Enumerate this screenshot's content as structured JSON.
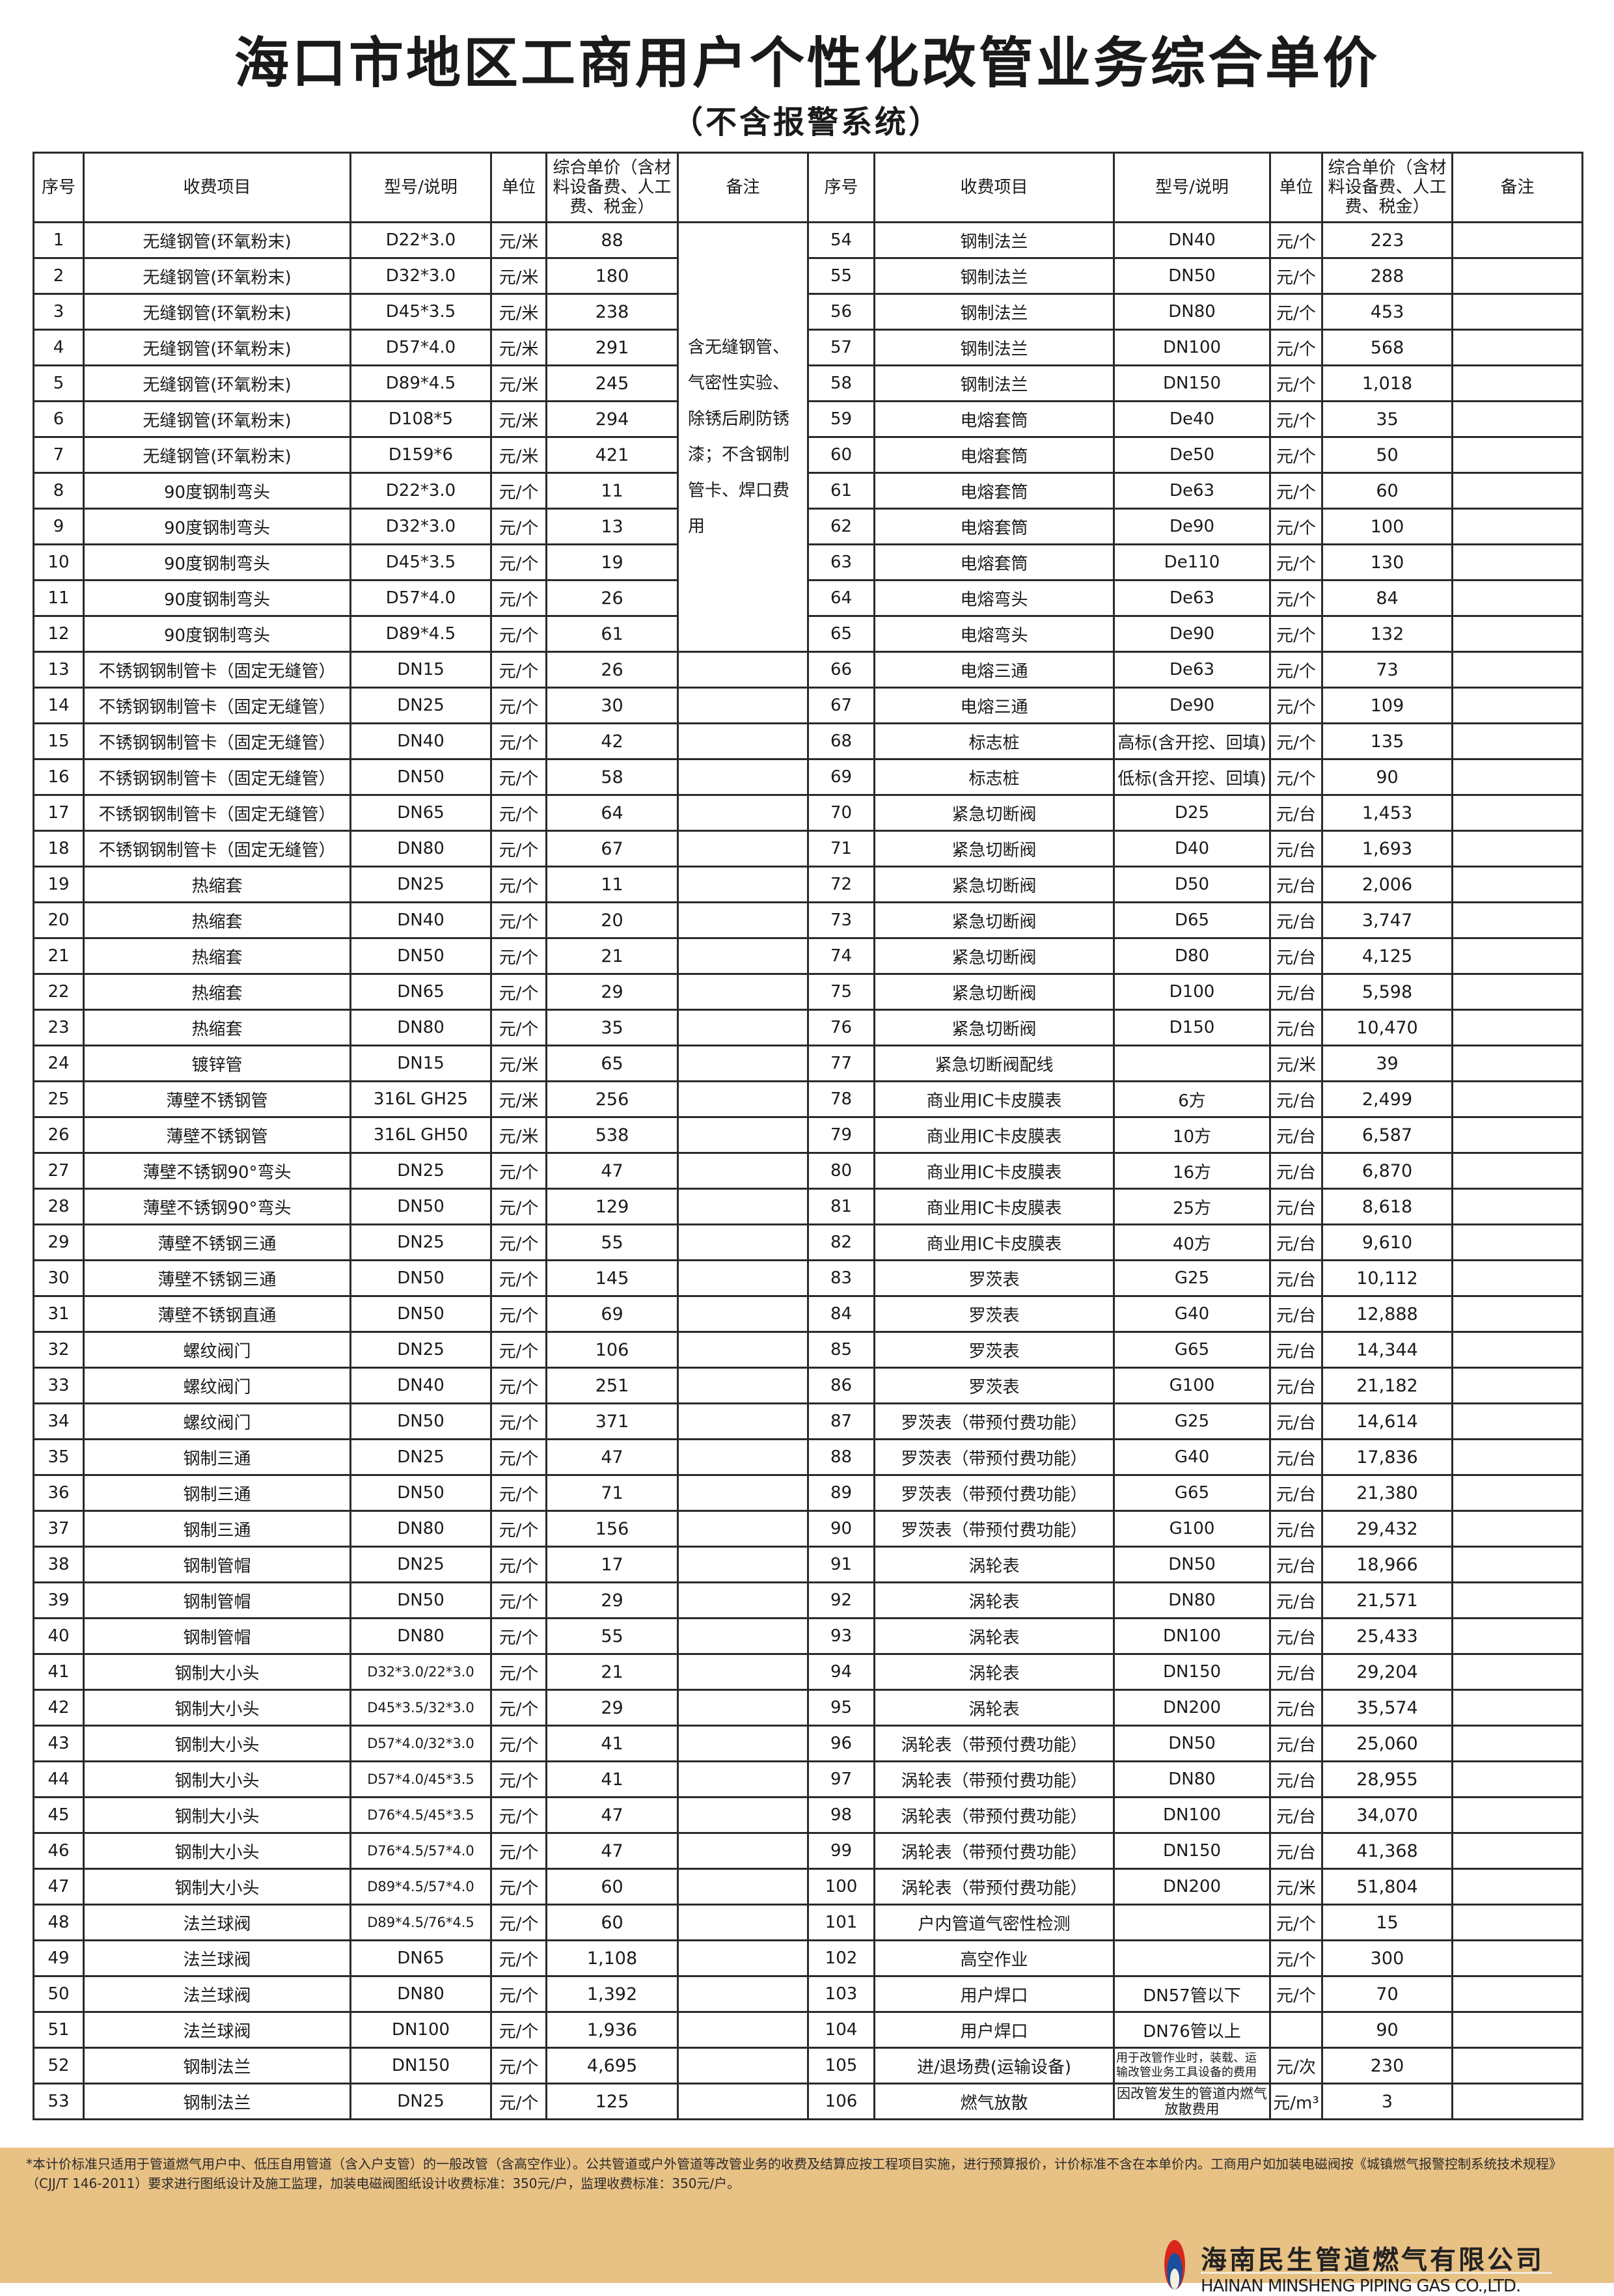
{
  "title": "海口市地区工商用户个性化改管业务综合单价",
  "subtitle": "（不含报警系统）",
  "headers": [
    "序号",
    "收费项目",
    "型号/说明",
    "单位",
    "综合单价（含材料设备费、人工费、税金）",
    "备注"
  ],
  "left_remark": "含无缝钢管、气密性实验、除锈后刷防锈漆；不含钢制管卡、焊口费用",
  "left_rows": [
    [
      "1",
      "无缝钢管(环氧粉末)",
      "D22*3.0",
      "元/米",
      "88"
    ],
    [
      "2",
      "无缝钢管(环氧粉末)",
      "D32*3.0",
      "元/米",
      "180"
    ],
    [
      "3",
      "无缝钢管(环氧粉末)",
      "D45*3.5",
      "元/米",
      "238"
    ],
    [
      "4",
      "无缝钢管(环氧粉末)",
      "D57*4.0",
      "元/米",
      "291"
    ],
    [
      "5",
      "无缝钢管(环氧粉末)",
      "D89*4.5",
      "元/米",
      "245"
    ],
    [
      "6",
      "无缝钢管(环氧粉末)",
      "D108*5",
      "元/米",
      "294"
    ],
    [
      "7",
      "无缝钢管(环氧粉末)",
      "D159*6",
      "元/米",
      "421"
    ],
    [
      "8",
      "90度钢制弯头",
      "D22*3.0",
      "元/个",
      "11"
    ],
    [
      "9",
      "90度钢制弯头",
      "D32*3.0",
      "元/个",
      "13"
    ],
    [
      "10",
      "90度钢制弯头",
      "D45*3.5",
      "元/个",
      "19"
    ],
    [
      "11",
      "90度钢制弯头",
      "D57*4.0",
      "元/个",
      "26"
    ],
    [
      "12",
      "90度钢制弯头",
      "D89*4.5",
      "元/个",
      "61"
    ],
    [
      "13",
      "不锈钢钢制管卡（固定无缝管）",
      "DN15",
      "元/个",
      "26"
    ],
    [
      "14",
      "不锈钢钢制管卡（固定无缝管）",
      "DN25",
      "元/个",
      "30"
    ],
    [
      "15",
      "不锈钢钢制管卡（固定无缝管）",
      "DN40",
      "元/个",
      "42"
    ],
    [
      "16",
      "不锈钢钢制管卡（固定无缝管）",
      "DN50",
      "元/个",
      "58"
    ],
    [
      "17",
      "不锈钢钢制管卡（固定无缝管）",
      "DN65",
      "元/个",
      "64"
    ],
    [
      "18",
      "不锈钢钢制管卡（固定无缝管）",
      "DN80",
      "元/个",
      "67"
    ],
    [
      "19",
      "热缩套",
      "DN25",
      "元/个",
      "11"
    ],
    [
      "20",
      "热缩套",
      "DN40",
      "元/个",
      "20"
    ],
    [
      "21",
      "热缩套",
      "DN50",
      "元/个",
      "21"
    ],
    [
      "22",
      "热缩套",
      "DN65",
      "元/个",
      "29"
    ],
    [
      "23",
      "热缩套",
      "DN80",
      "元/个",
      "35"
    ],
    [
      "24",
      "镀锌管",
      "DN15",
      "元/米",
      "65"
    ],
    [
      "25",
      "薄壁不锈钢管",
      "316L GH25",
      "元/米",
      "256"
    ],
    [
      "26",
      "薄壁不锈钢管",
      "316L GH50",
      "元/米",
      "538"
    ],
    [
      "27",
      "薄壁不锈钢90°弯头",
      "DN25",
      "元/个",
      "47"
    ],
    [
      "28",
      "薄壁不锈钢90°弯头",
      "DN50",
      "元/个",
      "129"
    ],
    [
      "29",
      "薄壁不锈钢三通",
      "DN25",
      "元/个",
      "55"
    ],
    [
      "30",
      "薄壁不锈钢三通",
      "DN50",
      "元/个",
      "145"
    ],
    [
      "31",
      "薄壁不锈钢直通",
      "DN50",
      "元/个",
      "69"
    ],
    [
      "32",
      "螺纹阀门",
      "DN25",
      "元/个",
      "106"
    ],
    [
      "33",
      "螺纹阀门",
      "DN40",
      "元/个",
      "251"
    ],
    [
      "34",
      "螺纹阀门",
      "DN50",
      "元/个",
      "371"
    ],
    [
      "35",
      "钢制三通",
      "DN25",
      "元/个",
      "47"
    ],
    [
      "36",
      "钢制三通",
      "DN50",
      "元/个",
      "71"
    ],
    [
      "37",
      "钢制三通",
      "DN80",
      "元/个",
      "156"
    ],
    [
      "38",
      "钢制管帽",
      "DN25",
      "元/个",
      "17"
    ],
    [
      "39",
      "钢制管帽",
      "DN50",
      "元/个",
      "29"
    ],
    [
      "40",
      "钢制管帽",
      "DN80",
      "元/个",
      "55"
    ],
    [
      "41",
      "钢制大小头",
      "D32*3.0/22*3.0",
      "元/个",
      "21"
    ],
    [
      "42",
      "钢制大小头",
      "D45*3.5/32*3.0",
      "元/个",
      "29"
    ],
    [
      "43",
      "钢制大小头",
      "D57*4.0/32*3.0",
      "元/个",
      "41"
    ],
    [
      "44",
      "钢制大小头",
      "D57*4.0/45*3.5",
      "元/个",
      "41"
    ],
    [
      "45",
      "钢制大小头",
      "D76*4.5/45*3.5",
      "元/个",
      "47"
    ],
    [
      "46",
      "钢制大小头",
      "D76*4.5/57*4.0",
      "元/个",
      "47"
    ],
    [
      "47",
      "钢制大小头",
      "D89*4.5/57*4.0",
      "元/个",
      "60"
    ],
    [
      "48",
      "法兰球阀",
      "D89*4.5/76*4.5",
      "元/个",
      "60"
    ],
    [
      "49",
      "法兰球阀",
      "DN65",
      "元/个",
      "1,108"
    ],
    [
      "50",
      "法兰球阀",
      "DN80",
      "元/个",
      "1,392"
    ],
    [
      "51",
      "法兰球阀",
      "DN100",
      "元/个",
      "1,936"
    ],
    [
      "52",
      "钢制法兰",
      "DN150",
      "元/个",
      "4,695"
    ],
    [
      "53",
      "钢制法兰",
      "DN25",
      "元/个",
      "125"
    ]
  ],
  "right_rows": [
    [
      "54",
      "钢制法兰",
      "DN40",
      "元/个",
      "223"
    ],
    [
      "55",
      "钢制法兰",
      "DN50",
      "元/个",
      "288"
    ],
    [
      "56",
      "钢制法兰",
      "DN80",
      "元/个",
      "453"
    ],
    [
      "57",
      "钢制法兰",
      "DN100",
      "元/个",
      "568"
    ],
    [
      "58",
      "钢制法兰",
      "DN150",
      "元/个",
      "1,018"
    ],
    [
      "59",
      "电熔套筒",
      "De40",
      "元/个",
      "35"
    ],
    [
      "60",
      "电熔套筒",
      "De50",
      "元/个",
      "50"
    ],
    [
      "61",
      "电熔套筒",
      "De63",
      "元/个",
      "60"
    ],
    [
      "62",
      "电熔套筒",
      "De90",
      "元/个",
      "100"
    ],
    [
      "63",
      "电熔套筒",
      "De110",
      "元/个",
      "130"
    ],
    [
      "64",
      "电熔弯头",
      "De63",
      "元/个",
      "84"
    ],
    [
      "65",
      "电熔弯头",
      "De90",
      "元/个",
      "132"
    ],
    [
      "66",
      "电熔三通",
      "De63",
      "元/个",
      "73"
    ],
    [
      "67",
      "电熔三通",
      "De90",
      "元/个",
      "109"
    ],
    [
      "68",
      "标志桩",
      "高标(含开挖、回填)",
      "元/个",
      "135"
    ],
    [
      "69",
      "标志桩",
      "低标(含开挖、回填)",
      "元/个",
      "90"
    ],
    [
      "70",
      "紧急切断阀",
      "D25",
      "元/台",
      "1,453"
    ],
    [
      "71",
      "紧急切断阀",
      "D40",
      "元/台",
      "1,693"
    ],
    [
      "72",
      "紧急切断阀",
      "D50",
      "元/台",
      "2,006"
    ],
    [
      "73",
      "紧急切断阀",
      "D65",
      "元/台",
      "3,747"
    ],
    [
      "74",
      "紧急切断阀",
      "D80",
      "元/台",
      "4,125"
    ],
    [
      "75",
      "紧急切断阀",
      "D100",
      "元/台",
      "5,598"
    ],
    [
      "76",
      "紧急切断阀",
      "D150",
      "元/台",
      "10,470"
    ],
    [
      "77",
      "紧急切断阀配线",
      "",
      "元/米",
      "39"
    ],
    [
      "78",
      "商业用IC卡皮膜表",
      "6方",
      "元/台",
      "2,499"
    ],
    [
      "79",
      "商业用IC卡皮膜表",
      "10方",
      "元/台",
      "6,587"
    ],
    [
      "80",
      "商业用IC卡皮膜表",
      "16方",
      "元/台",
      "6,870"
    ],
    [
      "81",
      "商业用IC卡皮膜表",
      "25方",
      "元/台",
      "8,618"
    ],
    [
      "82",
      "商业用IC卡皮膜表",
      "40方",
      "元/台",
      "9,610"
    ],
    [
      "83",
      "罗茨表",
      "G25",
      "元/台",
      "10,112"
    ],
    [
      "84",
      "罗茨表",
      "G40",
      "元/台",
      "12,888"
    ],
    [
      "85",
      "罗茨表",
      "G65",
      "元/台",
      "14,344"
    ],
    [
      "86",
      "罗茨表",
      "G100",
      "元/台",
      "21,182"
    ],
    [
      "87",
      "罗茨表（带预付费功能）",
      "G25",
      "元/台",
      "14,614"
    ],
    [
      "88",
      "罗茨表（带预付费功能）",
      "G40",
      "元/台",
      "17,836"
    ],
    [
      "89",
      "罗茨表（带预付费功能）",
      "G65",
      "元/台",
      "21,380"
    ],
    [
      "90",
      "罗茨表（带预付费功能）",
      "G100",
      "元/台",
      "29,432"
    ],
    [
      "91",
      "涡轮表",
      "DN50",
      "元/台",
      "18,966"
    ],
    [
      "92",
      "涡轮表",
      "DN80",
      "元/台",
      "21,571"
    ],
    [
      "93",
      "涡轮表",
      "DN100",
      "元/台",
      "25,433"
    ],
    [
      "94",
      "涡轮表",
      "DN150",
      "元/台",
      "29,204"
    ],
    [
      "95",
      "涡轮表",
      "DN200",
      "元/台",
      "35,574"
    ],
    [
      "96",
      "涡轮表（带预付费功能）",
      "DN50",
      "元/台",
      "25,060"
    ],
    [
      "97",
      "涡轮表（带预付费功能）",
      "DN80",
      "元/台",
      "28,955"
    ],
    [
      "98",
      "涡轮表（带预付费功能）",
      "DN100",
      "元/台",
      "34,070"
    ],
    [
      "99",
      "涡轮表（带预付费功能）",
      "DN150",
      "元/台",
      "41,368"
    ],
    [
      "100",
      "涡轮表（带预付费功能）",
      "DN200",
      "元/米",
      "51,804"
    ],
    [
      "101",
      "户内管道气密性检测",
      "",
      "元/个",
      "15"
    ],
    [
      "102",
      "高空作业",
      "",
      "元/个",
      "300"
    ],
    [
      "103",
      "用户焊口",
      "DN57管以下",
      "元/个",
      "70"
    ],
    [
      "104",
      "用户焊口",
      "DN76管以上",
      "",
      "90"
    ],
    [
      "105",
      "进/退场费(运输设备)",
      "用于改管作业时，装载、运输改管业务工具设备的费用",
      "元/次",
      "230"
    ],
    [
      "106",
      "燃气放散",
      "因改管发生的管道内燃气放散费用",
      "元/m³",
      "3"
    ]
  ],
  "footer": {
    "note": "*本计价标准只适用于管道燃气用户中、低压自用管道（含入户支管）的一般改管（含高空作业）。公共管道或户外管道等改管业务的收费及结算应按工程项目实施，进行预算报价，计价标准不含在本单价内。工商用户如加装电磁阀按《城镇燃气报警控制系统技术规程》（CJJ/T 146-2011）要求进行图纸设计及施工监理，加装电磁阀图纸设计收费标准：350元/户，监理收费标准：350元/户。",
    "company_cn": "海南民生管道燃气有限公司",
    "company_en": "HAINAN MINSHENG PIPING GAS CO.,LTD.",
    "background_color": "#e8c185",
    "logo_colors": [
      "#d8261c",
      "#1a4f9c"
    ]
  }
}
